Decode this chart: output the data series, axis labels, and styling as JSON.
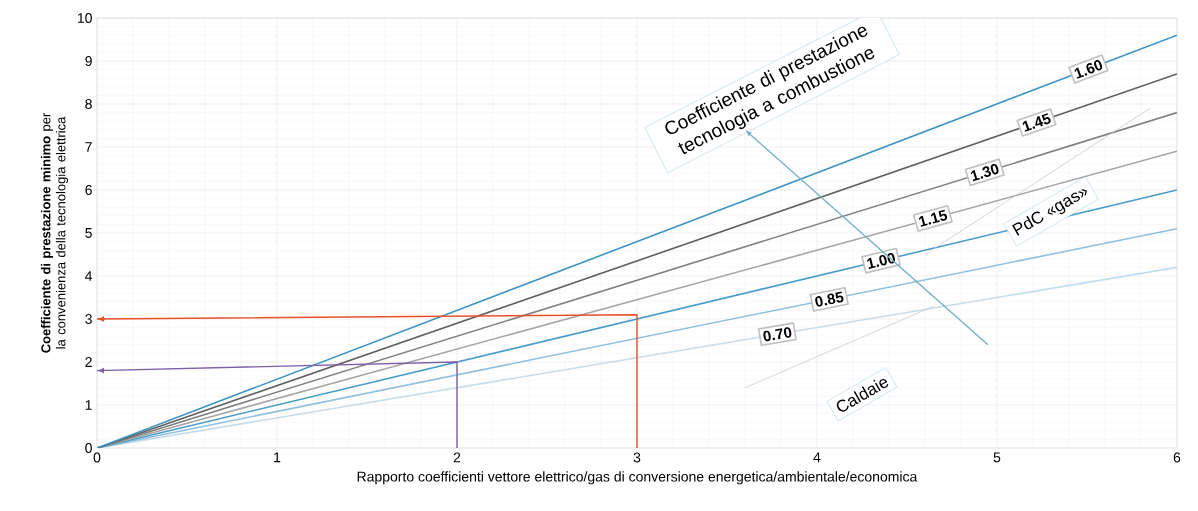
{
  "chart_data": {
    "type": "line",
    "xlabel": "Rapporto coefficienti vettore elettrico/gas di conversione energetica/ambientale/economica",
    "ylabel": "**Coefficiente di prestazione minimo** per la convenienza della tecnologia elettrica",
    "xlim": [
      0,
      6
    ],
    "ylim": [
      0,
      10
    ],
    "xticks": [
      0,
      1,
      2,
      3,
      4,
      5,
      6
    ],
    "yticks": [
      0,
      1,
      2,
      3,
      4,
      5,
      6,
      7,
      8,
      9,
      10
    ],
    "grid": true,
    "marker": "none",
    "line_style": "solid",
    "annotations": [
      "Coefficiente di prestazione tecnologia a combustione",
      "PdC «gas»",
      "Caldaie"
    ],
    "series": [
      {
        "name": "0.70",
        "color": "#c5dcec",
        "x": [
          0,
          6
        ],
        "values": [
          0,
          4.2
        ]
      },
      {
        "name": "0.85",
        "color": "#8fc0e0",
        "x": [
          0,
          6
        ],
        "values": [
          0,
          5.1
        ]
      },
      {
        "name": "1.00",
        "color": "#4a9ccc",
        "x": [
          0,
          6
        ],
        "values": [
          0,
          6.0
        ]
      },
      {
        "name": "1.15",
        "color": "#a6a6a6",
        "x": [
          0,
          6
        ],
        "values": [
          0,
          6.9
        ]
      },
      {
        "name": "1.30",
        "color": "#808080",
        "x": [
          0,
          6
        ],
        "values": [
          0,
          7.8
        ]
      },
      {
        "name": "1.45",
        "color": "#606060",
        "x": [
          0,
          6
        ],
        "values": [
          0,
          8.7
        ]
      },
      {
        "name": "1.60",
        "color": "#3c94c4",
        "x": [
          0,
          6
        ],
        "values": [
          0,
          9.6
        ]
      },
      {
        "color": "#e8502a",
        "x": [
          3,
          3,
          0
        ],
        "values": [
          0,
          3.1,
          3.0
        ]
      },
      {
        "color": "#7f5fa8",
        "x": [
          2,
          2,
          0
        ],
        "values": [
          0,
          2.0,
          1.8
        ]
      }
    ]
  }
}
